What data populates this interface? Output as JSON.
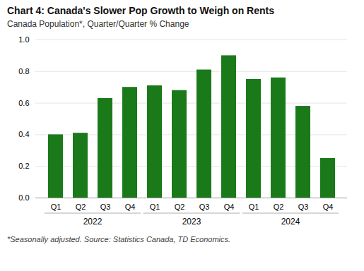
{
  "chart_data": {
    "type": "bar",
    "title": "Chart 4: Canada's Slower Pop Growth to Weigh on Rents",
    "subtitle": "Canada Population*, Quarter/Quarter % Change",
    "footnote": "*Seasonally adjusted. Source: Statistics Canada, TD Economics.",
    "categories": [
      "Q1",
      "Q2",
      "Q3",
      "Q4",
      "Q1",
      "Q2",
      "Q3",
      "Q4",
      "Q1",
      "Q2",
      "Q3",
      "Q4"
    ],
    "group_labels": [
      "2022",
      "2023",
      "2024"
    ],
    "values": [
      0.4,
      0.41,
      0.63,
      0.7,
      0.71,
      0.68,
      0.81,
      0.9,
      0.75,
      0.76,
      0.58,
      0.25
    ],
    "color": "#1a7a1a",
    "ylim": [
      0.0,
      1.0
    ],
    "yticks": [
      {
        "value": 0,
        "label": "0.0"
      },
      0.2,
      0.4,
      0.6,
      0.8,
      {
        "value": 1,
        "label": "1.0"
      }
    ],
    "grid": true
  }
}
